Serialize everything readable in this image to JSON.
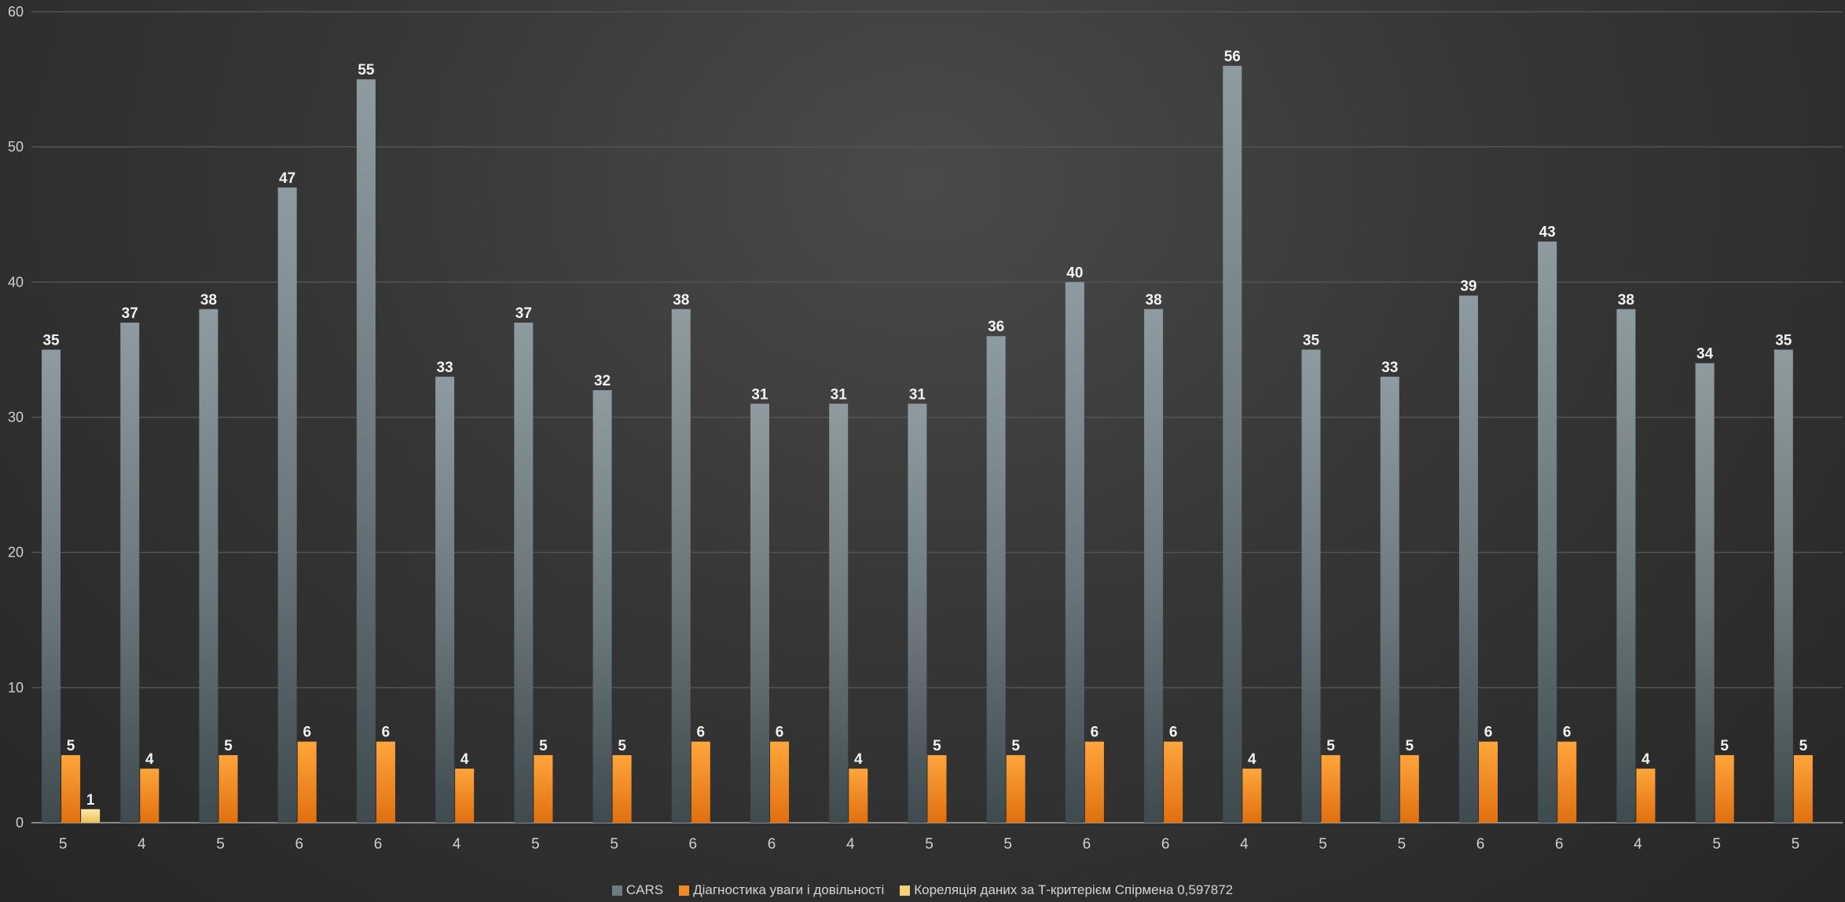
{
  "chart_data": {
    "type": "bar",
    "title": "",
    "xlabel": "",
    "ylabel": "",
    "ylim": [
      0,
      60
    ],
    "yticks": [
      0,
      10,
      20,
      30,
      40,
      50,
      60
    ],
    "grid": true,
    "legend_position": "bottom",
    "categories": [
      "5",
      "4",
      "5",
      "6",
      "6",
      "4",
      "5",
      "5",
      "6",
      "6",
      "4",
      "5",
      "5",
      "6",
      "6",
      "4",
      "5",
      "5",
      "6",
      "6",
      "4",
      "5",
      "5"
    ],
    "series": [
      {
        "name": "CARS",
        "color": "#6f7b80",
        "values": [
          35,
          37,
          38,
          47,
          55,
          33,
          37,
          32,
          38,
          31,
          31,
          31,
          36,
          40,
          38,
          56,
          35,
          33,
          39,
          43,
          38,
          34,
          35
        ]
      },
      {
        "name": "Діагностика уваги і довільності",
        "color": "#f08a24",
        "values": [
          5,
          4,
          5,
          6,
          6,
          4,
          5,
          5,
          6,
          6,
          4,
          5,
          5,
          6,
          6,
          4,
          5,
          5,
          6,
          6,
          4,
          5,
          5
        ]
      },
      {
        "name": "Кореляція даних за Т-критерієм Спірмена 0,597872",
        "color": "#f2d27a",
        "values": [
          1,
          null,
          null,
          null,
          null,
          null,
          null,
          null,
          null,
          null,
          null,
          null,
          null,
          null,
          null,
          null,
          null,
          null,
          null,
          null,
          null,
          null,
          null
        ]
      }
    ]
  }
}
